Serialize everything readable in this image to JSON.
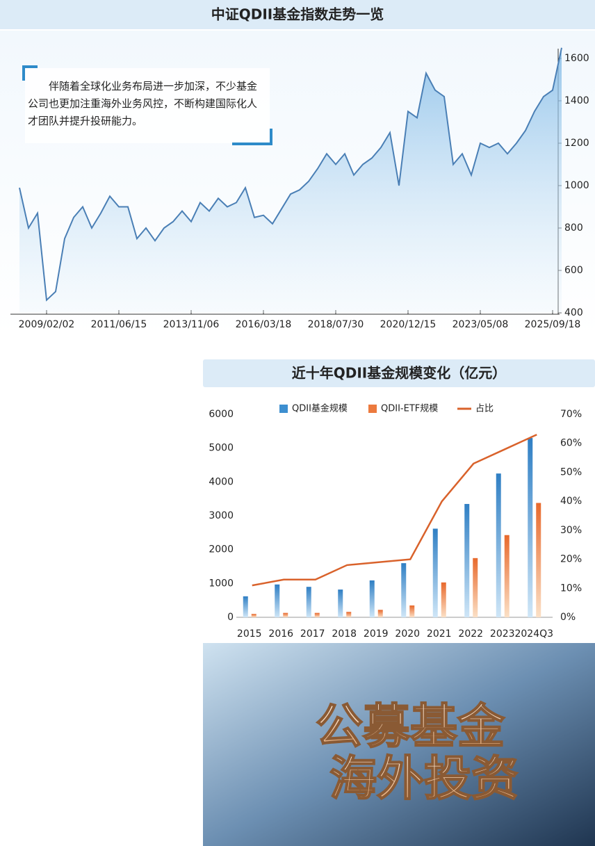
{
  "chart_data": [
    {
      "type": "line",
      "title": "中证QDII基金指数走势一览",
      "annotation": "伴随着全球化业务布局进一步加深，不少基金公司也更加注重海外业务风控，不断构建国际化人才团队并提升投研能力。",
      "categories": [
        null,
        null,
        null,
        "2009/02/02",
        null,
        null,
        null,
        null,
        null,
        null,
        null,
        "2011/06/15",
        null,
        null,
        null,
        null,
        null,
        null,
        null,
        "2013/11/06",
        null,
        null,
        null,
        null,
        null,
        null,
        null,
        "2016/03/18",
        null,
        null,
        null,
        null,
        null,
        null,
        null,
        "2018/07/30",
        null,
        null,
        null,
        null,
        null,
        null,
        null,
        "2020/12/15",
        null,
        null,
        null,
        null,
        null,
        null,
        null,
        "2023/05/08",
        null,
        null,
        null,
        null,
        null,
        null,
        null,
        "2025/09/18",
        null
      ],
      "values": [
        990,
        800,
        870,
        460,
        500,
        750,
        850,
        900,
        800,
        870,
        950,
        900,
        900,
        750,
        800,
        740,
        800,
        830,
        880,
        830,
        920,
        880,
        940,
        900,
        920,
        990,
        850,
        860,
        820,
        890,
        960,
        980,
        1020,
        1080,
        1150,
        1100,
        1150,
        1050,
        1100,
        1130,
        1180,
        1250,
        1000,
        1350,
        1320,
        1530,
        1450,
        1420,
        1100,
        1150,
        1050,
        1200,
        1180,
        1200,
        1150,
        1200,
        1260,
        1350,
        1420,
        1450,
        1650
      ],
      "color": "#4a7fb5",
      "ylim": [
        400,
        1600
      ],
      "yticks": [
        400,
        600,
        800,
        1000,
        1200,
        1400,
        1600
      ]
    },
    {
      "type": "bar",
      "title": "近十年QDII基金规模变化（亿元）",
      "categories": [
        "2015",
        "2016",
        "2017",
        "2018",
        "2019",
        "2020",
        "2021",
        "2022",
        "2023",
        "2024Q3"
      ],
      "series": [
        {
          "name": "QDII基金规模",
          "color": "#3d8fd0",
          "values": [
            620,
            970,
            900,
            820,
            1090,
            1600,
            2620,
            3350,
            4250,
            5300
          ]
        },
        {
          "name": "QDII-ETF规模",
          "color": "#ec7a3e",
          "values": [
            100,
            130,
            130,
            160,
            220,
            350,
            1030,
            1750,
            2430,
            3380
          ]
        },
        {
          "name": "占比",
          "color": "#d9622b",
          "type": "line",
          "axis": "y2",
          "values": [
            11,
            13,
            13,
            18,
            19,
            20,
            40,
            53,
            58,
            63
          ]
        }
      ],
      "ylim": [
        0,
        6000
      ],
      "yticks": [
        0,
        1000,
        2000,
        3000,
        4000,
        5000,
        6000
      ],
      "y2lim": [
        0,
        70
      ],
      "y2ticks": [
        {
          "value": 0,
          "label": "0%"
        },
        {
          "value": 10,
          "label": "10%"
        },
        {
          "value": 20,
          "label": "20%"
        },
        {
          "value": 30,
          "label": "30%"
        },
        {
          "value": 40,
          "label": "40%"
        },
        {
          "value": 50,
          "label": "50%"
        },
        {
          "value": 60,
          "label": "60%"
        },
        {
          "value": 70,
          "label": "70%"
        }
      ]
    }
  ],
  "banner": {
    "line1": "公募基金",
    "line2": "海外投资"
  }
}
